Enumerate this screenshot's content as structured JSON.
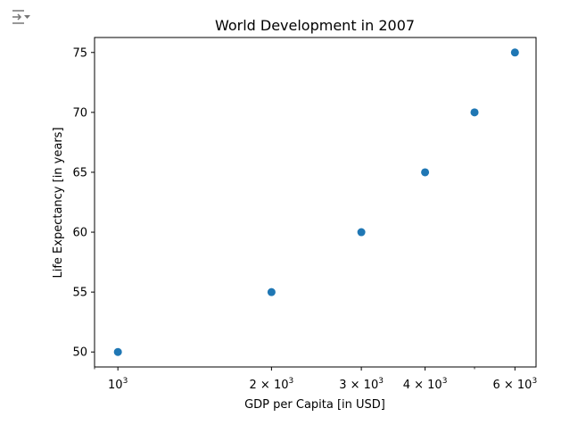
{
  "toolbar": {
    "icon": "output-toggle-icon"
  },
  "chart_data": {
    "type": "scatter",
    "title": "World Development in 2007",
    "xlabel": "GDP per Capita [in USD]",
    "ylabel": "Life Expectancy [in years]",
    "xscale": "log",
    "xlim": [
      900,
      6600
    ],
    "ylim": [
      48.75,
      76.25
    ],
    "x": [
      1000,
      2000,
      3000,
      4000,
      5000,
      6000
    ],
    "y": [
      50,
      55,
      60,
      65,
      70,
      75
    ],
    "xticks": [
      {
        "value": 1000,
        "base": "10",
        "exp": "3"
      },
      {
        "value": 2000,
        "base": "2 × 10",
        "exp": "3"
      },
      {
        "value": 3000,
        "base": "3 × 10",
        "exp": "3"
      },
      {
        "value": 4000,
        "base": "4 × 10",
        "exp": "3"
      },
      {
        "value": 6000,
        "base": "6 × 10",
        "exp": "3"
      }
    ],
    "yticks": [
      50,
      55,
      60,
      65,
      70,
      75
    ],
    "grid": false,
    "marker_color": "#1f77b4"
  }
}
